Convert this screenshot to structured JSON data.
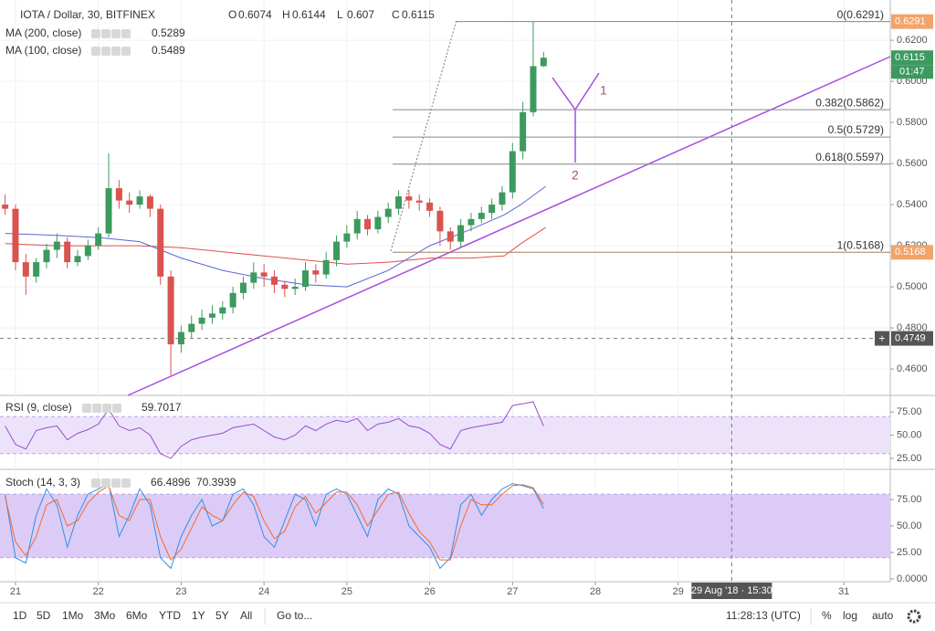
{
  "chart_data": [
    {
      "type": "candlestick",
      "title": "IOTA / Dollar, 30, BITFINEX",
      "ohlc_labels": [
        "O",
        "H",
        "L",
        "C"
      ],
      "x": [
        20.875,
        21,
        21.125,
        21.25,
        21.375,
        21.5,
        21.625,
        21.75,
        21.875,
        22,
        22.125,
        22.25,
        22.375,
        22.5,
        22.625,
        22.75,
        22.875,
        23,
        23.125,
        23.25,
        23.375,
        23.5,
        23.625,
        23.75,
        23.875,
        24,
        24.125,
        24.25,
        24.375,
        24.5,
        24.625,
        24.75,
        24.875,
        25,
        25.125,
        25.25,
        25.375,
        25.5,
        25.625,
        25.75,
        25.875,
        26,
        26.125,
        26.25,
        26.375,
        26.5,
        26.625,
        26.75,
        26.875,
        27,
        27.125,
        27.25,
        27.375
      ],
      "open": [
        0.54,
        0.538,
        0.512,
        0.505,
        0.512,
        0.518,
        0.522,
        0.512,
        0.515,
        0.52,
        0.526,
        0.548,
        0.542,
        0.54,
        0.544,
        0.538,
        0.505,
        0.472,
        0.478,
        0.482,
        0.485,
        0.487,
        0.49,
        0.497,
        0.502,
        0.507,
        0.505,
        0.501,
        0.499,
        0.5,
        0.508,
        0.506,
        0.513,
        0.522,
        0.526,
        0.533,
        0.528,
        0.534,
        0.538,
        0.544,
        0.542,
        0.541,
        0.537,
        0.527,
        0.522,
        0.53,
        0.533,
        0.536,
        0.54,
        0.546,
        0.566,
        0.585,
        0.6074
      ],
      "high": [
        0.545,
        0.54,
        0.516,
        0.514,
        0.521,
        0.526,
        0.524,
        0.518,
        0.523,
        0.529,
        0.565,
        0.552,
        0.546,
        0.547,
        0.545,
        0.54,
        0.508,
        0.481,
        0.486,
        0.489,
        0.491,
        0.493,
        0.5,
        0.505,
        0.512,
        0.511,
        0.508,
        0.503,
        0.504,
        0.512,
        0.511,
        0.517,
        0.525,
        0.53,
        0.537,
        0.535,
        0.537,
        0.541,
        0.547,
        0.547,
        0.545,
        0.543,
        0.539,
        0.529,
        0.533,
        0.536,
        0.539,
        0.543,
        0.549,
        0.57,
        0.59,
        0.6291,
        0.6144
      ],
      "low": [
        0.535,
        0.508,
        0.496,
        0.502,
        0.509,
        0.514,
        0.509,
        0.51,
        0.513,
        0.518,
        0.524,
        0.538,
        0.536,
        0.538,
        0.534,
        0.501,
        0.457,
        0.468,
        0.475,
        0.479,
        0.482,
        0.484,
        0.487,
        0.494,
        0.499,
        0.5,
        0.497,
        0.495,
        0.496,
        0.498,
        0.502,
        0.504,
        0.51,
        0.519,
        0.523,
        0.525,
        0.526,
        0.531,
        0.535,
        0.538,
        0.537,
        0.534,
        0.52,
        0.518,
        0.519,
        0.527,
        0.531,
        0.533,
        0.537,
        0.543,
        0.562,
        0.583,
        0.607
      ],
      "close": [
        0.538,
        0.512,
        0.505,
        0.512,
        0.518,
        0.522,
        0.512,
        0.515,
        0.52,
        0.526,
        0.548,
        0.542,
        0.54,
        0.544,
        0.538,
        0.505,
        0.472,
        0.478,
        0.482,
        0.485,
        0.487,
        0.49,
        0.497,
        0.502,
        0.507,
        0.505,
        0.501,
        0.499,
        0.5,
        0.508,
        0.506,
        0.513,
        0.522,
        0.526,
        0.533,
        0.528,
        0.534,
        0.538,
        0.544,
        0.542,
        0.541,
        0.537,
        0.527,
        0.522,
        0.53,
        0.533,
        0.536,
        0.54,
        0.546,
        0.566,
        0.585,
        0.6074,
        0.6115
      ],
      "up_color": "#3c9a5f",
      "down_color": "#d9534f",
      "series": [
        {
          "name": "MA (200, close)",
          "color": "#e0504d",
          "x": [
            20.875,
            21.5,
            22,
            22.5,
            23,
            23.5,
            24,
            24.5,
            25,
            25.5,
            26,
            26.5,
            26.9,
            27.1,
            27.4
          ],
          "values": [
            0.521,
            0.52,
            0.52,
            0.52,
            0.519,
            0.517,
            0.515,
            0.513,
            0.511,
            0.512,
            0.514,
            0.514,
            0.515,
            0.521,
            0.5289
          ]
        },
        {
          "name": "MA (100, close)",
          "color": "#5b66d6",
          "x": [
            20.875,
            21.5,
            22,
            22.5,
            23,
            23.5,
            24,
            24.5,
            25,
            25.5,
            26,
            26.5,
            26.9,
            27.1,
            27.4
          ],
          "values": [
            0.526,
            0.525,
            0.524,
            0.522,
            0.514,
            0.508,
            0.504,
            0.501,
            0.5,
            0.508,
            0.52,
            0.528,
            0.535,
            0.54,
            0.5489
          ]
        }
      ],
      "fib_levels": [
        {
          "value": 0.6291,
          "label": "0(0.6291)"
        },
        {
          "value": 0.5862,
          "label": "0.382(0.5862)"
        },
        {
          "value": 0.5729,
          "label": "0.5(0.5729)"
        },
        {
          "value": 0.5597,
          "label": "0.618(0.5597)"
        },
        {
          "value": 0.5168,
          "label": "1(0.5168)"
        }
      ],
      "countdown": "01:47",
      "crosshair": {
        "x": 29.646,
        "y": 0.4749,
        "label": "29 Aug '18 · 15:30"
      },
      "annotations": [
        "1",
        "2"
      ],
      "xlim": [
        20.813,
        31.56
      ],
      "ylim": [
        0.4476,
        0.6396
      ],
      "xticks": [
        21,
        22,
        23,
        24,
        25,
        26,
        27,
        28,
        29,
        31
      ],
      "yticks": [
        {
          "value": 0.46,
          "label": "0.4600"
        },
        {
          "value": 0.48,
          "label": "0.4800"
        },
        {
          "value": 0.5,
          "label": "0.5000"
        },
        {
          "value": 0.52,
          "label": "0.5200"
        },
        {
          "value": 0.54,
          "label": "0.5400"
        },
        {
          "value": 0.56,
          "label": "0.5600"
        },
        {
          "value": 0.58,
          "label": "0.5800"
        },
        {
          "value": 0.6,
          "label": "0.6000"
        },
        {
          "value": 0.62,
          "label": "0.6200"
        }
      ],
      "grid": true
    },
    {
      "type": "line",
      "title": "RSI (9, close)",
      "x": [
        20.875,
        21,
        21.125,
        21.25,
        21.375,
        21.5,
        21.625,
        21.75,
        21.875,
        22,
        22.125,
        22.25,
        22.375,
        22.5,
        22.625,
        22.75,
        22.875,
        23,
        23.125,
        23.25,
        23.375,
        23.5,
        23.625,
        23.75,
        23.875,
        24,
        24.125,
        24.25,
        24.375,
        24.5,
        24.625,
        24.75,
        24.875,
        25,
        25.125,
        25.25,
        25.375,
        25.5,
        25.625,
        25.75,
        25.875,
        26,
        26.125,
        26.25,
        26.375,
        26.5,
        26.625,
        26.75,
        26.875,
        27,
        27.125,
        27.25,
        27.375
      ],
      "series": [
        {
          "color": "#9c4dcc",
          "values": [
            60,
            40,
            35,
            55,
            58,
            60,
            45,
            52,
            56,
            62,
            78,
            60,
            55,
            58,
            50,
            30,
            25,
            38,
            45,
            48,
            50,
            52,
            58,
            60,
            62,
            55,
            48,
            45,
            50,
            60,
            55,
            62,
            66,
            64,
            68,
            55,
            62,
            64,
            68,
            60,
            58,
            52,
            40,
            35,
            55,
            58,
            60,
            62,
            64,
            82,
            84,
            86,
            59.7017
          ]
        }
      ],
      "band": [
        30,
        70
      ],
      "band_color": "#ece3fb",
      "xlim": [
        20.813,
        31.56
      ],
      "ylim": [
        15,
        92
      ],
      "yticks": [
        {
          "value": 25,
          "label": "25.00"
        },
        {
          "value": 50,
          "label": "50.00"
        },
        {
          "value": 75,
          "label": "75.00"
        }
      ]
    },
    {
      "type": "line",
      "title": "Stoch (14, 3, 3)",
      "x": [
        20.875,
        21,
        21.125,
        21.25,
        21.375,
        21.5,
        21.625,
        21.75,
        21.875,
        22,
        22.125,
        22.25,
        22.375,
        22.5,
        22.625,
        22.75,
        22.875,
        23,
        23.125,
        23.25,
        23.375,
        23.5,
        23.625,
        23.75,
        23.875,
        24,
        24.125,
        24.25,
        24.375,
        24.5,
        24.625,
        24.75,
        24.875,
        25,
        25.125,
        25.25,
        25.375,
        25.5,
        25.625,
        25.75,
        25.875,
        26,
        26.125,
        26.25,
        26.375,
        26.5,
        26.625,
        26.75,
        26.875,
        27,
        27.125,
        27.25,
        27.375
      ],
      "series": [
        {
          "color": "#2f8fe6",
          "values": [
            80,
            20,
            15,
            60,
            85,
            70,
            30,
            60,
            80,
            85,
            90,
            40,
            60,
            85,
            70,
            20,
            10,
            40,
            60,
            75,
            50,
            55,
            80,
            85,
            70,
            40,
            30,
            55,
            80,
            75,
            50,
            80,
            85,
            80,
            60,
            40,
            75,
            85,
            80,
            50,
            40,
            30,
            10,
            20,
            70,
            80,
            60,
            75,
            85,
            90,
            88,
            85,
            66.4896
          ]
        },
        {
          "color": "#f26b2a",
          "values": [
            78,
            35,
            22,
            40,
            70,
            75,
            50,
            55,
            72,
            82,
            88,
            60,
            55,
            75,
            75,
            40,
            18,
            28,
            48,
            68,
            60,
            55,
            70,
            82,
            78,
            55,
            38,
            45,
            68,
            78,
            62,
            72,
            82,
            82,
            70,
            50,
            65,
            80,
            82,
            62,
            45,
            35,
            18,
            18,
            50,
            75,
            70,
            70,
            80,
            88,
            89,
            86,
            70.3939
          ]
        }
      ],
      "band": [
        20,
        80
      ],
      "band_color": "#dccbf7",
      "xlim": [
        20.813,
        31.56
      ],
      "ylim": [
        -2.6,
        101.7
      ],
      "yticks": [
        {
          "value": 0,
          "label": "0.0000"
        },
        {
          "value": 25,
          "label": "25.00"
        },
        {
          "value": 50,
          "label": "50.00"
        },
        {
          "value": 75,
          "label": "75.00"
        }
      ]
    }
  ],
  "toolbar": {
    "ranges": [
      "1D",
      "5D",
      "1Mo",
      "3Mo",
      "6Mo",
      "YTD",
      "1Y",
      "5Y",
      "All"
    ],
    "goto": "Go to...",
    "clock": "11:28:13 (UTC)",
    "options": [
      "%",
      "log",
      "auto"
    ]
  }
}
